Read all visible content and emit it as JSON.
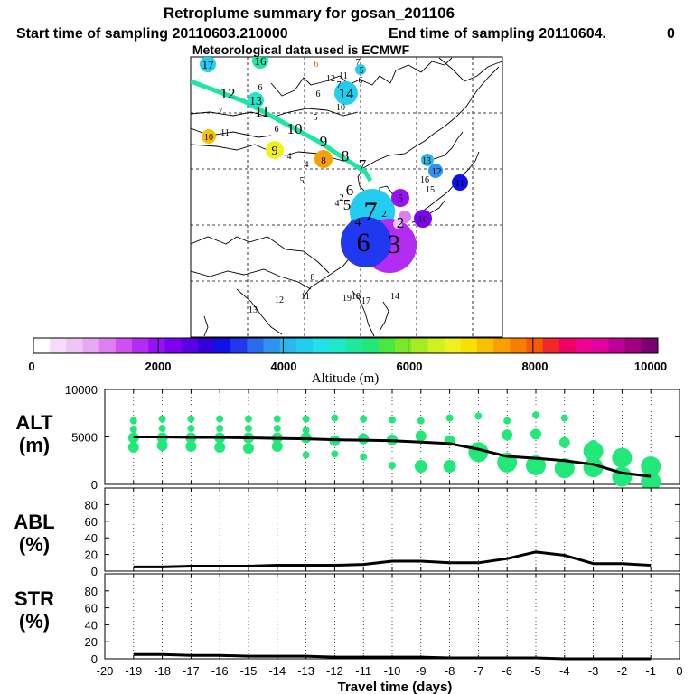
{
  "header": {
    "title": "Retroplume summary for gosan_201106",
    "start_time": "Start time of sampling 20110603.210000",
    "end_time": "End time of sampling 20110604.",
    "end_suffix": "0",
    "met_data": "Meteorological data used is ECMWF"
  },
  "colorbar": {
    "ticks": [
      "0",
      "2000",
      "4000",
      "6000",
      "8000",
      "10000"
    ],
    "label": "Altitude (m)",
    "colors": [
      "#ffffff",
      "#f6dcf8",
      "#efc5f4",
      "#e6a8f0",
      "#dd7ff0",
      "#d04ff0",
      "#b42bf2",
      "#9810f4",
      "#7d00f0",
      "#5a00e6",
      "#3300dd",
      "#1010e8",
      "#1f38f0",
      "#2a6cf0",
      "#2d95f0",
      "#2bb6f0",
      "#22cdf0",
      "#20e0e8",
      "#1ee8cc",
      "#1ee8a0",
      "#22e87a",
      "#48e840",
      "#78e828",
      "#a6ec20",
      "#d0f020",
      "#f0f020",
      "#f8e000",
      "#f8c000",
      "#f8a000",
      "#f87e00",
      "#f85a00",
      "#f02828",
      "#f00060",
      "#f00090",
      "#e400a0",
      "#c00094",
      "#a00080",
      "#780070"
    ]
  },
  "chart_data": [
    {
      "type": "map",
      "title": "Retroplume summary for gosan_201106",
      "trajectory_labels": [
        "12",
        "11",
        "10",
        "9",
        "8",
        "7",
        "6",
        "5",
        "4",
        "3",
        "2",
        "1"
      ],
      "clusters": [
        {
          "day": "17",
          "size": "medium",
          "color": "#22cdf0"
        },
        {
          "day": "16",
          "size": "medium",
          "color": "#1ee8a0"
        },
        {
          "day": "15",
          "size": "small",
          "color": "#22cdf0"
        },
        {
          "day": "14",
          "size": "large",
          "color": "#22cdf0"
        },
        {
          "day": "13",
          "size": "medium",
          "color": "#1ee8cc"
        },
        {
          "day": "12",
          "size": "medium",
          "color": "#2d95f0"
        },
        {
          "day": "11",
          "size": "medium",
          "color": "#1010e8"
        },
        {
          "day": "10",
          "size": "medium",
          "color": "#f8c000"
        },
        {
          "day": "9",
          "size": "medium",
          "color": "#f0f020"
        },
        {
          "day": "8",
          "size": "medium",
          "color": "#f8a000"
        },
        {
          "day": "7",
          "size": "large",
          "color": "#22cdf0"
        },
        {
          "day": "6",
          "size": "xlarge",
          "color": "#1f38f0"
        },
        {
          "day": "5",
          "size": "medium",
          "color": "#9810f4"
        },
        {
          "day": "4",
          "size": "medium",
          "color": "#d04ff0"
        },
        {
          "day": "3",
          "size": "xlarge",
          "color": "#b42bf2"
        },
        {
          "day": "2",
          "size": "small",
          "color": "#efc5f4"
        },
        {
          "day": "1",
          "size": "small",
          "color": "#dd7ff0"
        }
      ],
      "colorbar_label": "Altitude (m)",
      "colorbar_range": [
        0,
        10000
      ]
    },
    {
      "type": "line",
      "panel": "ALT",
      "ylabel": "ALT\n(m)",
      "ylim": [
        0,
        10000
      ],
      "yticks": [
        0,
        5000,
        10000
      ],
      "x": [
        -19,
        -18,
        -17,
        -16,
        -15,
        -14,
        -13,
        -12,
        -11,
        -10,
        -9,
        -8,
        -7,
        -6,
        -5,
        -4,
        -3,
        -2,
        -1
      ],
      "values": [
        5000,
        5000,
        4950,
        4950,
        4900,
        4850,
        4800,
        4700,
        4650,
        4600,
        4450,
        4300,
        3700,
        2950,
        2750,
        2500,
        2100,
        1200,
        850
      ],
      "scatter": [
        {
          "x": -19,
          "y": 6700
        },
        {
          "x": -19,
          "y": 5800
        },
        {
          "x": -19,
          "y": 4900
        },
        {
          "x": -19,
          "y": 3900
        },
        {
          "x": -18,
          "y": 6900
        },
        {
          "x": -18,
          "y": 5900
        },
        {
          "x": -18,
          "y": 4900
        },
        {
          "x": -18,
          "y": 4100
        },
        {
          "x": -17,
          "y": 6900
        },
        {
          "x": -17,
          "y": 5900
        },
        {
          "x": -17,
          "y": 4900
        },
        {
          "x": -17,
          "y": 4000
        },
        {
          "x": -16,
          "y": 6900
        },
        {
          "x": -16,
          "y": 5900
        },
        {
          "x": -16,
          "y": 4900
        },
        {
          "x": -16,
          "y": 3900
        },
        {
          "x": -15,
          "y": 6900
        },
        {
          "x": -15,
          "y": 5900
        },
        {
          "x": -15,
          "y": 4900
        },
        {
          "x": -15,
          "y": 3800
        },
        {
          "x": -14,
          "y": 6900
        },
        {
          "x": -14,
          "y": 5900
        },
        {
          "x": -14,
          "y": 4900
        },
        {
          "x": -14,
          "y": 4000
        },
        {
          "x": -13,
          "y": 6900
        },
        {
          "x": -13,
          "y": 5700
        },
        {
          "x": -13,
          "y": 4900
        },
        {
          "x": -13,
          "y": 3100
        },
        {
          "x": -12,
          "y": 7000
        },
        {
          "x": -12,
          "y": 4600
        },
        {
          "x": -12,
          "y": 3200
        },
        {
          "x": -11,
          "y": 6900
        },
        {
          "x": -11,
          "y": 4800
        },
        {
          "x": -11,
          "y": 2900
        },
        {
          "x": -10,
          "y": 6800
        },
        {
          "x": -10,
          "y": 4700
        },
        {
          "x": -10,
          "y": 2000
        },
        {
          "x": -9,
          "y": 6700
        },
        {
          "x": -9,
          "y": 5100
        },
        {
          "x": -9,
          "y": 1900
        },
        {
          "x": -8,
          "y": 7000
        },
        {
          "x": -8,
          "y": 4600
        },
        {
          "x": -8,
          "y": 1900
        },
        {
          "x": -7,
          "y": 7200
        },
        {
          "x": -7,
          "y": 3400
        },
        {
          "x": -6,
          "y": 6700
        },
        {
          "x": -6,
          "y": 5200
        },
        {
          "x": -6,
          "y": 2300
        },
        {
          "x": -5,
          "y": 7300
        },
        {
          "x": -5,
          "y": 5300
        },
        {
          "x": -5,
          "y": 2000
        },
        {
          "x": -4,
          "y": 7000
        },
        {
          "x": -4,
          "y": 4400
        },
        {
          "x": -4,
          "y": 1700
        },
        {
          "x": -3,
          "y": 4100
        },
        {
          "x": -3,
          "y": 3500
        },
        {
          "x": -3,
          "y": 1800
        },
        {
          "x": -2,
          "y": 2800
        },
        {
          "x": -2,
          "y": 800
        },
        {
          "x": -1,
          "y": 1900
        },
        {
          "x": -1,
          "y": 300
        }
      ]
    },
    {
      "type": "line",
      "panel": "ABL",
      "ylabel": "ABL\n(%)",
      "ylim": [
        0,
        100
      ],
      "yticks": [
        0,
        20,
        40,
        60,
        80
      ],
      "x": [
        -19,
        -18,
        -17,
        -16,
        -15,
        -14,
        -13,
        -12,
        -11,
        -10,
        -9,
        -8,
        -7,
        -6,
        -5,
        -4,
        -3,
        -2,
        -1
      ],
      "values": [
        5,
        5,
        6,
        6,
        6,
        7,
        7,
        7,
        8,
        12,
        12,
        10,
        10,
        15,
        23,
        19,
        9,
        9,
        7
      ]
    },
    {
      "type": "line",
      "panel": "STR",
      "ylabel": "STR\n(%)",
      "ylim": [
        0,
        100
      ],
      "yticks": [
        0,
        20,
        40,
        60,
        80
      ],
      "x": [
        -19,
        -18,
        -17,
        -16,
        -15,
        -14,
        -13,
        -12,
        -11,
        -10,
        -9,
        -8,
        -7,
        -6,
        -5,
        -4,
        -3,
        -2,
        -1
      ],
      "values": [
        5,
        5,
        4,
        4,
        3,
        3,
        3,
        2,
        2,
        2,
        2,
        1,
        1,
        1,
        1,
        0,
        0,
        0,
        0
      ],
      "xlabel": "Travel time (days)",
      "xlim": [
        -20,
        0
      ],
      "xticks": [
        "-20",
        "-19",
        "-18",
        "-17",
        "-16",
        "-15",
        "-14",
        "-13",
        "-12",
        "-11",
        "-10",
        "-9",
        "-8",
        "-7",
        "-6",
        "-5",
        "-4",
        "-3",
        "-2",
        "-1",
        "0"
      ]
    }
  ]
}
